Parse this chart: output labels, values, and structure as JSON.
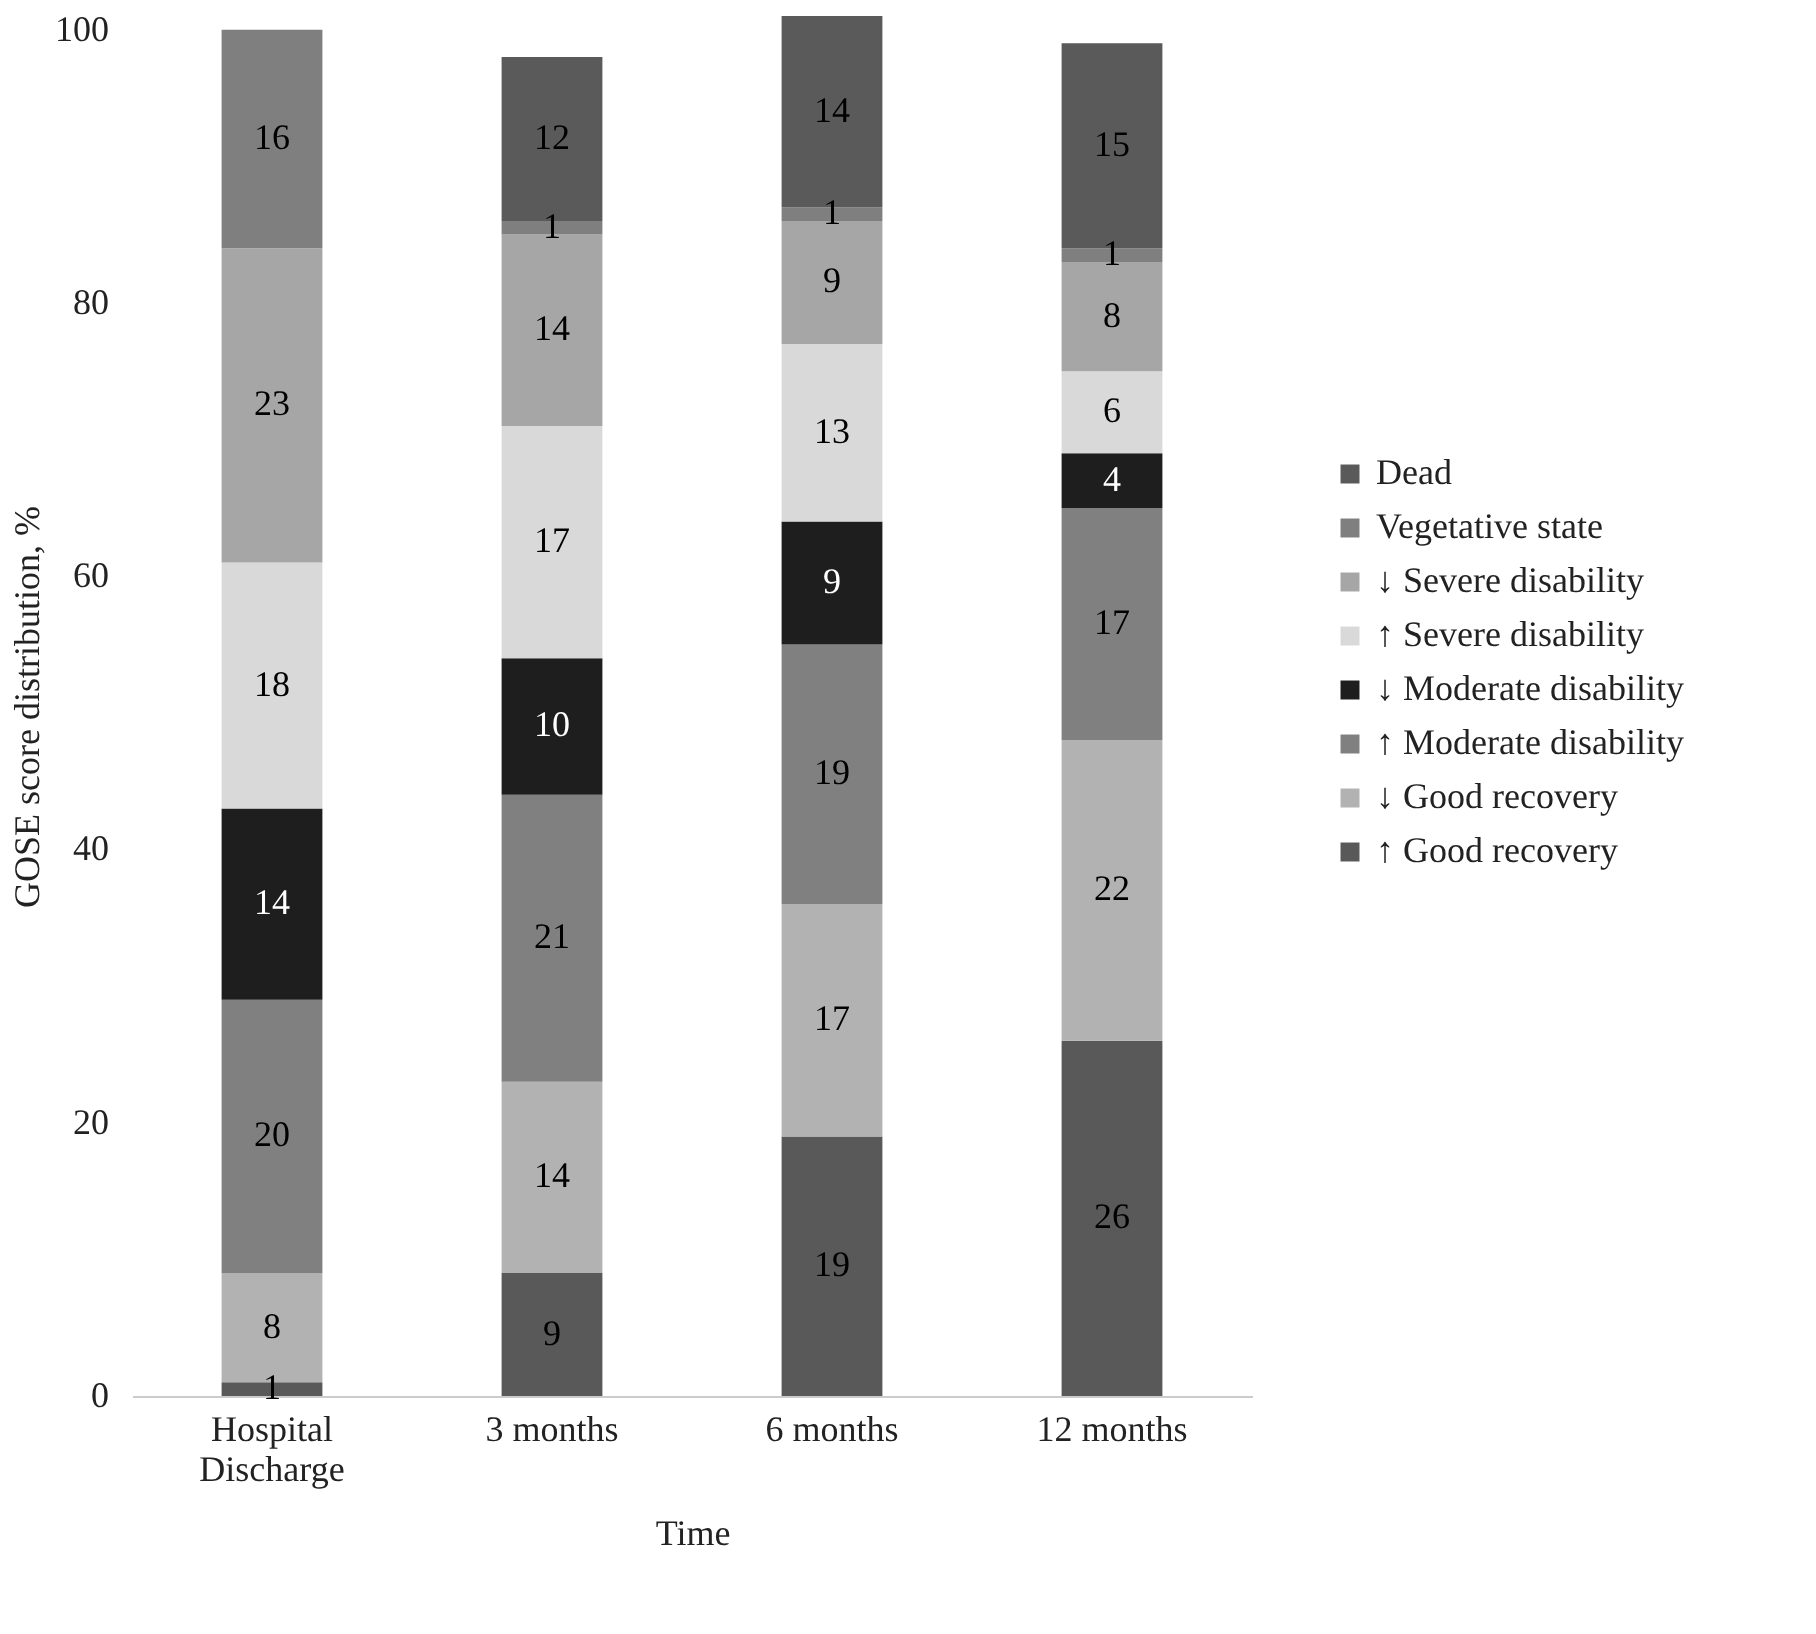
{
  "chart_data": {
    "type": "bar",
    "stacked": true,
    "xlabel": "Time",
    "ylabel": "GOSE score distribution, %",
    "categories": [
      "Hospital Discharge",
      "3 months",
      "6 months",
      "12 months"
    ],
    "ylim": [
      0,
      101
    ],
    "yticks": [
      0,
      20,
      40,
      60,
      80,
      100
    ],
    "grid": false,
    "legend": "right",
    "data_labels": true,
    "series": [
      {
        "name": "↑ Good recovery",
        "color": "#595959",
        "values": [
          1,
          9,
          19,
          26
        ]
      },
      {
        "name": "↓ Good recovery",
        "color": "#b2b2b2",
        "values": [
          8,
          14,
          17,
          22
        ]
      },
      {
        "name": "↑ Moderate disability",
        "color": "#808080",
        "values": [
          20,
          21,
          19,
          17
        ]
      },
      {
        "name": "↓ Moderate disability",
        "color": "#1e1e1e",
        "values": [
          14,
          10,
          9,
          4
        ]
      },
      {
        "name": "↑ Severe disability",
        "color": "#d9d9d9",
        "values": [
          18,
          17,
          13,
          6
        ]
      },
      {
        "name": "↓ Severe disability",
        "color": "#a6a6a6",
        "values": [
          23,
          14,
          9,
          8
        ]
      },
      {
        "name": "Vegetative state",
        "color": "#7f7f7f",
        "values": [
          16,
          1,
          1,
          1
        ]
      },
      {
        "name": "Dead",
        "color": "#5a5a5a",
        "values": [
          null,
          12,
          14,
          15
        ]
      }
    ]
  }
}
